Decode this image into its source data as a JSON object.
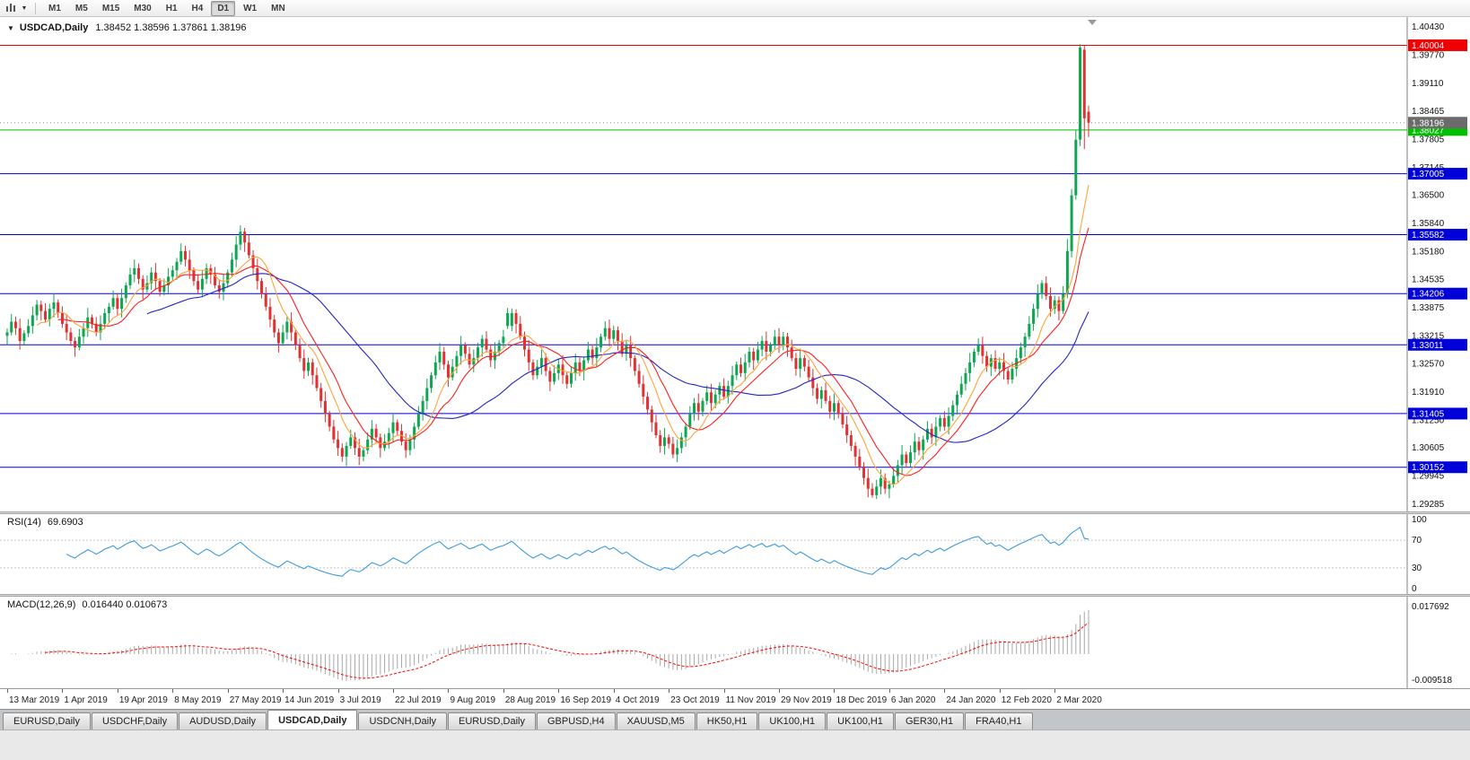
{
  "toolbar": {
    "timeframes": [
      "M1",
      "M5",
      "M15",
      "M30",
      "H1",
      "H4",
      "D1",
      "W1",
      "MN"
    ],
    "active_timeframe": "D1"
  },
  "chart": {
    "marker": "▼",
    "symbol": "USDCAD,Daily",
    "ohlc_text": "1.38452 1.38596 1.37861 1.38196"
  },
  "rsi": {
    "label": "RSI(14)",
    "value": "69.6903",
    "axis_labels": [
      "100",
      "70",
      "30",
      "0"
    ],
    "levels": [
      70,
      30
    ],
    "color": "#3E9BDE",
    "level_line_color": "#c8c8c8"
  },
  "macd": {
    "label": "MACD(12,26,9)",
    "values": "0.016440 0.010673",
    "axis_max_label": "0.017692",
    "axis_min_label": "-0.009518",
    "axis_max": 0.017692,
    "axis_min": -0.009518,
    "histogram_color": "#a8a8a8",
    "signal_color": "#ff0000"
  },
  "tabs": {
    "items": [
      "EURUSD,Daily",
      "USDCHF,Daily",
      "AUDUSD,Daily",
      "USDCAD,Daily",
      "USDCNH,Daily",
      "EURUSD,Daily",
      "GBPUSD,H4",
      "XAUUSD,M5",
      "HK50,H1",
      "UK100,H1",
      "UK100,H1",
      "GER30,H1",
      "FRA40,H1"
    ],
    "active_index": 3
  },
  "chart_data": {
    "type": "candlestick",
    "symbol": "USDCAD",
    "timeframe": "Daily",
    "title": "USDCAD,Daily",
    "last_candle": {
      "open": "1.38452",
      "high": "1.38596",
      "low": "1.37861",
      "close": "1.38196"
    },
    "current_price": 1.38196,
    "current_price_label": "1.38196",
    "current_price_badge_color": "#6b6b6b",
    "price_range": {
      "min": 1.2912,
      "max": 1.406
    },
    "price_axis_labels": [
      "1.40430",
      "1.39770",
      "1.39110",
      "1.38465",
      "1.37805",
      "1.37145",
      "1.36500",
      "1.35840",
      "1.35180",
      "1.34535",
      "1.33875",
      "1.33215",
      "1.32570",
      "1.31910",
      "1.31250",
      "1.30605",
      "1.29945",
      "1.29285"
    ],
    "x_labels": [
      "13 Mar 2019",
      "1 Apr 2019",
      "19 Apr 2019",
      "8 May 2019",
      "27 May 2019",
      "14 Jun 2019",
      "3 Jul 2019",
      "22 Jul 2019",
      "9 Aug 2019",
      "28 Aug 2019",
      "16 Sep 2019",
      "4 Oct 2019",
      "23 Oct 2019",
      "11 Nov 2019",
      "29 Nov 2019",
      "18 Dec 2019",
      "6 Jan 2020",
      "24 Jan 2020",
      "12 Feb 2020",
      "2 Mar 2020"
    ],
    "x_label_indices": [
      0,
      13,
      26,
      39,
      52,
      65,
      78,
      91,
      104,
      117,
      130,
      143,
      156,
      169,
      182,
      195,
      208,
      221,
      234,
      247
    ],
    "levels": [
      {
        "price": 1.40004,
        "label": "1.40004",
        "color": "#f00000"
      },
      {
        "price": 1.38027,
        "label": "1.38027",
        "color": "#00c000"
      },
      {
        "price": 1.37005,
        "label": "1.37005",
        "color": "#0000d8"
      },
      {
        "price": 1.35582,
        "label": "1.35582",
        "color": "#0000d8"
      },
      {
        "price": 1.34206,
        "label": "1.34206",
        "color": "#0000d8"
      },
      {
        "price": 1.33011,
        "label": "1.33011",
        "color": "#0000d8"
      },
      {
        "price": 1.31405,
        "label": "1.31405",
        "color": "#0000d8"
      },
      {
        "price": 1.30152,
        "label": "1.30152",
        "color": "#0000d8"
      }
    ],
    "moving_averages": [
      {
        "name": "slow",
        "period": 34,
        "color": "#2424c8"
      },
      {
        "name": "medium",
        "period": 13,
        "color": "#ff1e1e"
      },
      {
        "name": "fast",
        "period": 8,
        "color": "#ffa33c"
      }
    ],
    "candle_colors": {
      "bull": "#0ca750",
      "bear": "#e03232"
    },
    "wick_pattern": [
      0.0009,
      0.0018,
      0.0012,
      0.0022,
      0.0007,
      0.0016,
      0.002,
      0.0011
    ],
    "ohlc_overrides": {
      "55": [
        1.3535,
        1.358,
        1.3522,
        1.3565
      ],
      "118": [
        1.3345,
        1.3387,
        1.3338,
        1.3375
      ],
      "204": [
        1.2965,
        1.2978,
        1.2944,
        1.295
      ],
      "250": [
        1.342,
        1.3548,
        1.341,
        1.352
      ],
      "251": [
        1.352,
        1.3665,
        1.3505,
        1.365
      ],
      "252": [
        1.365,
        1.3802,
        1.364,
        1.378
      ],
      "253": [
        1.378,
        1.4003,
        1.3765,
        1.3995
      ],
      "254": [
        1.399,
        1.3999,
        1.3758,
        1.383
      ],
      "255": [
        1.38452,
        1.38596,
        1.37861,
        1.38196
      ]
    },
    "closes": [
      1.333,
      1.3355,
      1.334,
      1.331,
      1.3328,
      1.3345,
      1.337,
      1.3395,
      1.338,
      1.336,
      1.3385,
      1.34,
      1.3375,
      1.335,
      1.333,
      1.331,
      1.3295,
      1.332,
      1.334,
      1.3365,
      1.335,
      1.333,
      1.335,
      1.3375,
      1.339,
      1.341,
      1.3385,
      1.341,
      1.344,
      1.3465,
      1.348,
      1.3455,
      1.343,
      1.3445,
      1.347,
      1.345,
      1.3425,
      1.344,
      1.346,
      1.3475,
      1.3495,
      1.352,
      1.35,
      1.3475,
      1.345,
      1.343,
      1.3455,
      1.348,
      1.3465,
      1.344,
      1.3425,
      1.3445,
      1.347,
      1.35,
      1.3535,
      1.3565,
      1.354,
      1.351,
      1.348,
      1.345,
      1.342,
      1.339,
      1.336,
      1.333,
      1.3305,
      1.333,
      1.3355,
      1.333,
      1.33,
      1.327,
      1.324,
      1.326,
      1.323,
      1.32,
      1.317,
      1.314,
      1.311,
      1.308,
      1.306,
      1.304,
      1.3065,
      1.3085,
      1.306,
      1.304,
      1.3055,
      1.308,
      1.3105,
      1.3085,
      1.306,
      1.3075,
      1.3095,
      1.312,
      1.31,
      1.3075,
      1.3055,
      1.308,
      1.311,
      1.314,
      1.317,
      1.32,
      1.323,
      1.326,
      1.3285,
      1.3255,
      1.3225,
      1.325,
      1.3275,
      1.33,
      1.328,
      1.3255,
      1.327,
      1.3295,
      1.3315,
      1.329,
      1.3265,
      1.3285,
      1.3305,
      1.332,
      1.3345,
      1.3375,
      1.335,
      1.332,
      1.329,
      1.326,
      1.323,
      1.325,
      1.327,
      1.324,
      1.3215,
      1.3235,
      1.3255,
      1.323,
      1.321,
      1.3235,
      1.326,
      1.324,
      1.3265,
      1.329,
      1.327,
      1.3295,
      1.332,
      1.334,
      1.3315,
      1.3335,
      1.331,
      1.328,
      1.33,
      1.327,
      1.324,
      1.321,
      1.318,
      1.315,
      1.312,
      1.309,
      1.3065,
      1.3085,
      1.307,
      1.3045,
      1.306,
      1.3085,
      1.311,
      1.314,
      1.3165,
      1.3145,
      1.317,
      1.319,
      1.3165,
      1.3185,
      1.3205,
      1.318,
      1.3205,
      1.323,
      1.3255,
      1.3235,
      1.326,
      1.3285,
      1.3265,
      1.329,
      1.331,
      1.3285,
      1.33,
      1.332,
      1.33,
      1.332,
      1.3295,
      1.327,
      1.3245,
      1.327,
      1.325,
      1.3225,
      1.32,
      1.3175,
      1.3195,
      1.317,
      1.3145,
      1.3165,
      1.314,
      1.3115,
      1.309,
      1.3065,
      1.304,
      1.3015,
      1.299,
      1.2965,
      1.295,
      1.297,
      1.299,
      1.2965,
      1.2975,
      1.2995,
      1.302,
      1.3045,
      1.3025,
      1.305,
      1.3075,
      1.3055,
      1.308,
      1.3105,
      1.3085,
      1.311,
      1.313,
      1.311,
      1.3135,
      1.316,
      1.3185,
      1.321,
      1.3235,
      1.326,
      1.3285,
      1.33,
      1.3275,
      1.325,
      1.327,
      1.3245,
      1.326,
      1.324,
      1.322,
      1.3245,
      1.327,
      1.3295,
      1.332,
      1.335,
      1.3385,
      1.342,
      1.3445,
      1.3415,
      1.3385,
      1.3405,
      1.338,
      1.342,
      1.352,
      1.365,
      1.378,
      1.3995,
      1.383,
      1.38196
    ]
  }
}
